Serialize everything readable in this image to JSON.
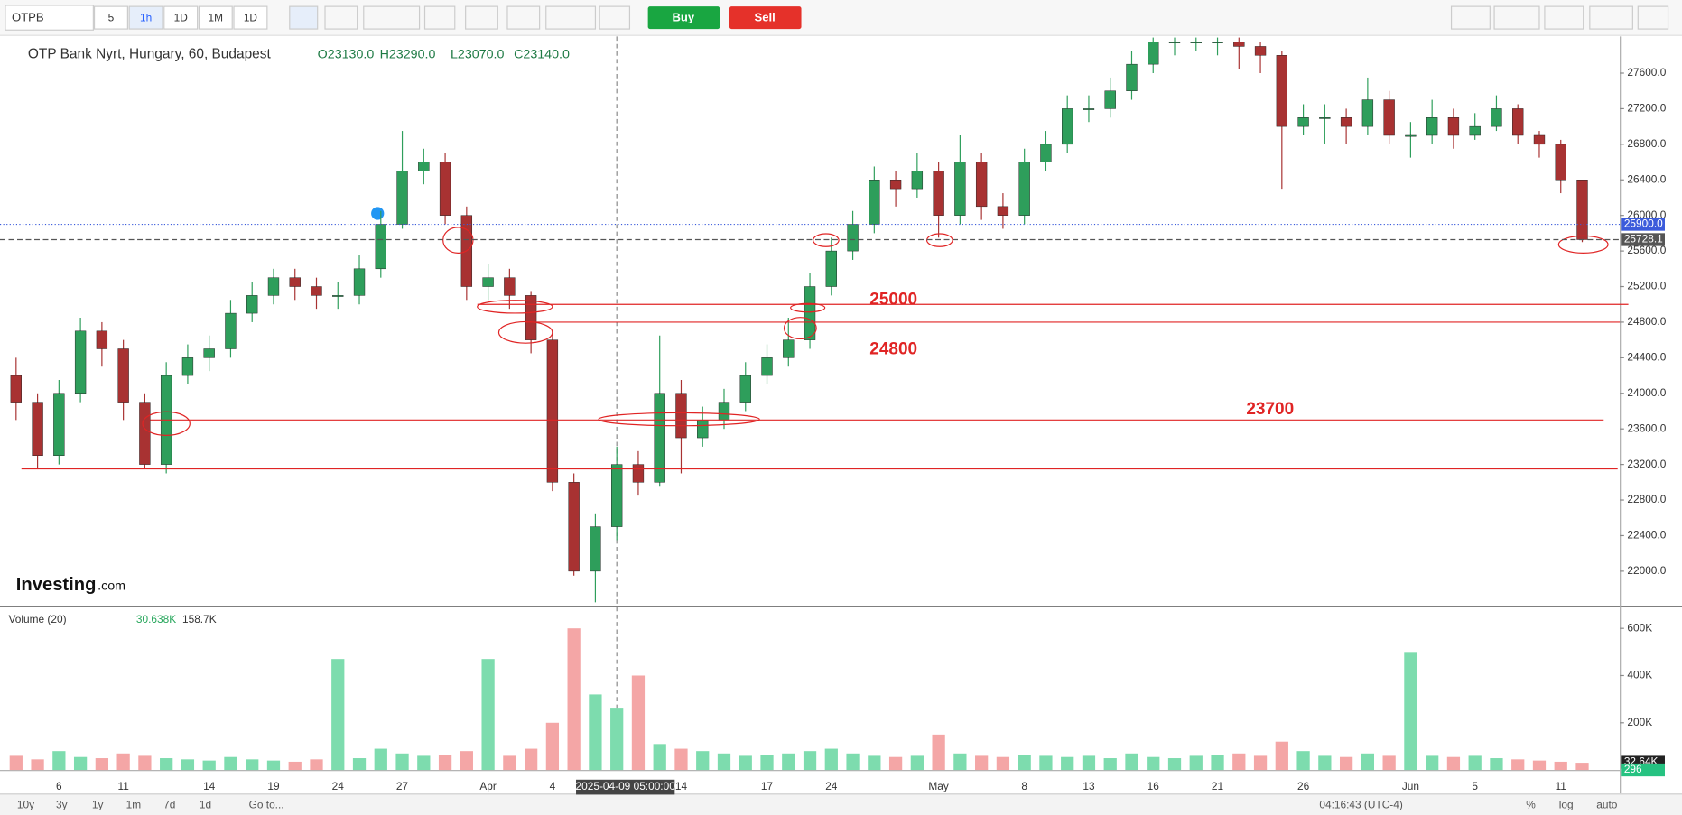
{
  "toolbar": {
    "symbol": "OTPB",
    "intervals": [
      "5",
      "1h",
      "1D",
      "1M",
      "1D"
    ],
    "buy": "Buy",
    "sell": "Sell"
  },
  "bottom_bar": {
    "ranges": [
      "10y",
      "3y",
      "1y",
      "1m",
      "7d",
      "1d"
    ],
    "goto": "Go to...",
    "time": "04:16:43 (UTC-4)",
    "options": [
      "%",
      "log",
      "auto"
    ]
  },
  "logo": {
    "main": "Investing",
    "suffix": ".com"
  },
  "chart_data": [
    {
      "type": "candlestick",
      "title": "OTP Bank Nyrt, Hungary, 60, Budapest",
      "ohlc_legend": [
        "O23130.0",
        "H23290.0",
        "L23070.0",
        "C23140.0"
      ],
      "categories": [
        null,
        null,
        "6",
        null,
        null,
        "11",
        null,
        null,
        null,
        "14",
        null,
        null,
        "19",
        null,
        null,
        "24",
        null,
        null,
        "27",
        null,
        null,
        null,
        "Apr",
        null,
        null,
        "4",
        null,
        null,
        null,
        null,
        null,
        "14",
        null,
        null,
        null,
        "17",
        null,
        null,
        "24",
        null,
        null,
        null,
        null,
        "May",
        null,
        null,
        null,
        "8",
        null,
        null,
        "13",
        null,
        null,
        "16",
        null,
        null,
        "21",
        null,
        null,
        null,
        "26",
        null,
        null,
        null,
        null,
        "Jun",
        null,
        null,
        "5",
        null,
        null,
        null,
        "11",
        null
      ],
      "open": [
        24200,
        23900,
        23300,
        24000,
        24700,
        24500,
        23900,
        23200,
        24200,
        24400,
        24500,
        24900,
        25100,
        25300,
        25200,
        25100,
        25100,
        25400,
        25900,
        26500,
        26600,
        26000,
        25200,
        25300,
        25100,
        24600,
        23000,
        22000,
        22500,
        23200,
        23000,
        24000,
        23500,
        23700,
        23900,
        24200,
        24400,
        24600,
        25200,
        25600,
        25900,
        26400,
        26300,
        26500,
        26000,
        26600,
        26100,
        26000,
        26600,
        26800,
        27200,
        27200,
        27400,
        27700,
        27950,
        27950,
        27950,
        27950,
        27900,
        27800,
        27000,
        27100,
        27100,
        27000,
        27300,
        26900,
        26900,
        27100,
        26900,
        27000,
        27200,
        26900,
        26800,
        26400
      ],
      "high": [
        24400,
        24000,
        24150,
        24850,
        24800,
        24600,
        24000,
        24350,
        24550,
        24650,
        25050,
        25250,
        25400,
        25400,
        25300,
        25250,
        25550,
        26050,
        26950,
        26750,
        26700,
        26100,
        25450,
        25400,
        25150,
        24700,
        23100,
        22650,
        23400,
        23350,
        24650,
        24150,
        23850,
        24050,
        24350,
        24550,
        24850,
        25350,
        25750,
        26050,
        26550,
        26500,
        26700,
        26600,
        26900,
        26700,
        26250,
        26750,
        26950,
        27350,
        27350,
        27550,
        27850,
        28000,
        28000,
        28000,
        28000,
        28000,
        27950,
        27850,
        27250,
        27250,
        27200,
        27550,
        27400,
        27050,
        27300,
        27200,
        27150,
        27350,
        27250,
        26950,
        26850,
        26400
      ],
      "low": [
        23700,
        23150,
        23200,
        23900,
        24300,
        23700,
        23150,
        23100,
        24100,
        24250,
        24400,
        24800,
        25000,
        25050,
        24950,
        24950,
        25000,
        25300,
        25850,
        26350,
        25900,
        25050,
        25050,
        24950,
        24450,
        22900,
        21950,
        21650,
        22350,
        22850,
        22950,
        23100,
        23400,
        23600,
        23800,
        24100,
        24300,
        24500,
        25100,
        25500,
        25800,
        26100,
        26200,
        25750,
        25900,
        25950,
        25850,
        25900,
        26500,
        26700,
        27050,
        27100,
        27300,
        27600,
        27800,
        27850,
        27800,
        27650,
        27600,
        26300,
        26900,
        26800,
        26800,
        26900,
        26800,
        26650,
        26800,
        26750,
        26850,
        26950,
        26800,
        26650,
        26250,
        25700
      ],
      "close": [
        23900,
        23300,
        24000,
        24700,
        24500,
        23900,
        23200,
        24200,
        24400,
        24500,
        24900,
        25100,
        25300,
        25200,
        25100,
        25100,
        25400,
        25900,
        26500,
        26600,
        26000,
        25200,
        25300,
        25100,
        24600,
        23000,
        22000,
        22500,
        23200,
        23000,
        24000,
        23500,
        23700,
        23900,
        24200,
        24400,
        24600,
        25200,
        25600,
        25900,
        26400,
        26300,
        26500,
        26000,
        26600,
        26100,
        26000,
        26600,
        26800,
        27200,
        27200,
        27400,
        27700,
        27950,
        27950,
        27950,
        27950,
        27900,
        27800,
        27000,
        27100,
        27100,
        27000,
        27300,
        26900,
        26900,
        27100,
        26900,
        27000,
        27200,
        26900,
        26800,
        26400,
        25728.1
      ],
      "up_color": "#2e9e5b",
      "down_color": "#a83232",
      "ylim": [
        21610,
        28000
      ],
      "yticks": [
        {
          "value": 22000,
          "label": "22000.0"
        },
        {
          "value": 22400,
          "label": "22400.0"
        },
        {
          "value": 22800,
          "label": "22800.0"
        },
        {
          "value": 23200,
          "label": "23200.0"
        },
        {
          "value": 23600,
          "label": "23600.0"
        },
        {
          "value": 24000,
          "label": "24000.0"
        },
        {
          "value": 24400,
          "label": "24400.0"
        },
        {
          "value": 24800,
          "label": "24800.0"
        },
        {
          "value": 25200,
          "label": "25200.0"
        },
        {
          "value": 25600,
          "label": "25600.0"
        },
        {
          "value": 26000,
          "label": "26000.0"
        },
        {
          "value": 26400,
          "label": "26400.0"
        },
        {
          "value": 26800,
          "label": "26800.0"
        },
        {
          "value": 27200,
          "label": "27200.0"
        },
        {
          "value": 27600,
          "label": "27600.0"
        }
      ],
      "grid": false,
      "hlines": [
        25000,
        24800,
        23700
      ],
      "support_line": 23150,
      "hline_color": "#e02424",
      "price_markers": [
        {
          "value": 25900,
          "label": "25900.0",
          "color": "#3b5bdb"
        },
        {
          "value": 25728.1,
          "label": "25728.1",
          "color": "#555555"
        }
      ],
      "crosshair_label": "2025-04-09 05:00:00"
    },
    {
      "type": "bar",
      "title": "Volume (20)",
      "legend_values": [
        "30.638K",
        "158.7K"
      ],
      "values": [
        60000,
        45000,
        80000,
        55000,
        50000,
        70000,
        60000,
        50000,
        45000,
        40000,
        55000,
        45000,
        40000,
        35000,
        45000,
        470000,
        50000,
        90000,
        70000,
        60000,
        65000,
        80000,
        470000,
        60000,
        90000,
        200000,
        600000,
        320000,
        260000,
        400000,
        110000,
        90000,
        80000,
        70000,
        60000,
        65000,
        70000,
        80000,
        90000,
        70000,
        60000,
        55000,
        60000,
        150000,
        70000,
        60000,
        55000,
        65000,
        60000,
        55000,
        60000,
        50000,
        70000,
        55000,
        50000,
        60000,
        65000,
        70000,
        60000,
        120000,
        80000,
        60000,
        55000,
        70000,
        60000,
        500000,
        60000,
        55000,
        60000,
        50000,
        45000,
        40000,
        35000,
        30638
      ],
      "up_color": "#7ddcae",
      "down_color": "#f4a6a6",
      "ylim": [
        0,
        686000
      ],
      "yticks": [
        {
          "value": 200000,
          "label": "200K"
        },
        {
          "value": 400000,
          "label": "400K"
        },
        {
          "value": 600000,
          "label": "600K"
        }
      ],
      "price_markers": [
        {
          "value": 32640,
          "label": "32.64K",
          "color": "#222222"
        },
        {
          "value": 296,
          "label": "296",
          "color": "#26c281"
        }
      ]
    }
  ]
}
